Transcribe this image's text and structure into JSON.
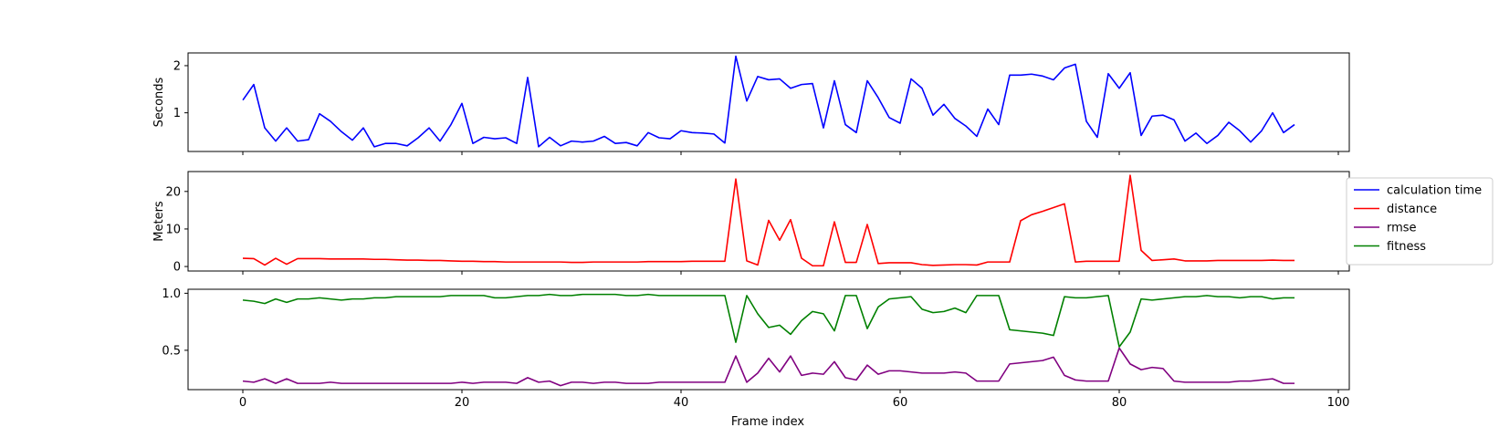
{
  "chart_data": {
    "type": "line",
    "xlabel": "Frame index",
    "xlim": [
      -5,
      101
    ],
    "xticks": [
      0,
      20,
      40,
      60,
      80,
      100
    ],
    "legend": {
      "placement": "right",
      "entries": [
        {
          "name": "calculation time",
          "color": "#0000ff"
        },
        {
          "name": "distance",
          "color": "#ff0000"
        },
        {
          "name": "rmse",
          "color": "#800080"
        },
        {
          "name": "fitness",
          "color": "#008000"
        }
      ]
    },
    "panels": [
      {
        "ylabel": "Seconds",
        "ylim": [
          0.18,
          2.27
        ],
        "yticks": [
          1,
          2
        ],
        "series": [
          {
            "name": "calculation time",
            "color": "#0000ff",
            "values": [
              1.27,
              1.6,
              0.68,
              0.4,
              0.68,
              0.4,
              0.43,
              0.98,
              0.82,
              0.6,
              0.42,
              0.68,
              0.28,
              0.35,
              0.35,
              0.3,
              0.47,
              0.68,
              0.4,
              0.75,
              1.2,
              0.35,
              0.48,
              0.45,
              0.47,
              0.35,
              1.75,
              0.28,
              0.48,
              0.3,
              0.4,
              0.38,
              0.4,
              0.5,
              0.35,
              0.37,
              0.3,
              0.58,
              0.47,
              0.45,
              0.62,
              0.58,
              0.57,
              0.55,
              0.36,
              2.2,
              1.25,
              1.77,
              1.7,
              1.72,
              1.52,
              1.6,
              1.62,
              0.68,
              1.68,
              0.75,
              0.58,
              1.68,
              1.32,
              0.9,
              0.78,
              1.72,
              1.52,
              0.95,
              1.18,
              0.88,
              0.72,
              0.5,
              1.08,
              0.75,
              1.8,
              1.8,
              1.82,
              1.78,
              1.7,
              1.95,
              2.03,
              0.82,
              0.48,
              1.83,
              1.52,
              1.85,
              0.52,
              0.93,
              0.95,
              0.85,
              0.4,
              0.57,
              0.35,
              0.52,
              0.8,
              0.62,
              0.38,
              0.62,
              1.0,
              0.58,
              0.75
            ]
          }
        ]
      },
      {
        "ylabel": "Meters",
        "ylim": [
          -1.2,
          25.3
        ],
        "yticks": [
          0,
          10,
          20
        ],
        "series": [
          {
            "name": "distance",
            "color": "#ff0000",
            "values": [
              2.2,
              2.1,
              0.4,
              2.2,
              0.6,
              2.1,
              2.1,
              2.1,
              2.0,
              2.0,
              2.0,
              2.0,
              1.9,
              1.9,
              1.8,
              1.7,
              1.7,
              1.6,
              1.6,
              1.5,
              1.4,
              1.4,
              1.3,
              1.3,
              1.2,
              1.2,
              1.2,
              1.2,
              1.2,
              1.2,
              1.1,
              1.1,
              1.2,
              1.2,
              1.2,
              1.2,
              1.2,
              1.3,
              1.3,
              1.3,
              1.3,
              1.4,
              1.4,
              1.4,
              1.4,
              23.3,
              1.5,
              0.4,
              12.3,
              7.0,
              12.5,
              2.2,
              0.2,
              0.2,
              11.9,
              1.1,
              1.1,
              11.2,
              0.8,
              1.0,
              1.0,
              1.0,
              0.5,
              0.3,
              0.4,
              0.5,
              0.5,
              0.4,
              1.2,
              1.2,
              1.2,
              12.2,
              13.8,
              14.7,
              15.7,
              16.7,
              1.2,
              1.4,
              1.4,
              1.4,
              1.4,
              24.3,
              4.3,
              1.6,
              1.8,
              2.0,
              1.5,
              1.5,
              1.5,
              1.6,
              1.6,
              1.6,
              1.6,
              1.6,
              1.7,
              1.6,
              1.6
            ]
          }
        ]
      },
      {
        "ylabel": "",
        "ylim": [
          0.155,
          1.035
        ],
        "yticks": [
          0.5,
          1.0
        ],
        "yticklabels": [
          "0.5",
          "1.0"
        ],
        "series": [
          {
            "name": "fitness",
            "color": "#008000",
            "values": [
              0.94,
              0.93,
              0.91,
              0.95,
              0.92,
              0.95,
              0.95,
              0.96,
              0.95,
              0.94,
              0.95,
              0.95,
              0.96,
              0.96,
              0.97,
              0.97,
              0.97,
              0.97,
              0.97,
              0.98,
              0.98,
              0.98,
              0.98,
              0.96,
              0.96,
              0.97,
              0.98,
              0.98,
              0.99,
              0.98,
              0.98,
              0.99,
              0.99,
              0.99,
              0.99,
              0.98,
              0.98,
              0.99,
              0.98,
              0.98,
              0.98,
              0.98,
              0.98,
              0.98,
              0.98,
              0.57,
              0.98,
              0.82,
              0.7,
              0.72,
              0.64,
              0.76,
              0.84,
              0.82,
              0.67,
              0.98,
              0.98,
              0.69,
              0.88,
              0.95,
              0.96,
              0.97,
              0.86,
              0.83,
              0.84,
              0.87,
              0.83,
              0.98,
              0.98,
              0.98,
              0.68,
              0.67,
              0.66,
              0.65,
              0.63,
              0.97,
              0.96,
              0.96,
              0.97,
              0.98,
              0.53,
              0.66,
              0.95,
              0.94,
              0.95,
              0.96,
              0.97,
              0.97,
              0.98,
              0.97,
              0.97,
              0.96,
              0.97,
              0.97,
              0.95,
              0.96,
              0.96
            ]
          },
          {
            "name": "rmse",
            "color": "#800080",
            "values": [
              0.23,
              0.22,
              0.25,
              0.21,
              0.25,
              0.21,
              0.21,
              0.21,
              0.22,
              0.21,
              0.21,
              0.21,
              0.21,
              0.21,
              0.21,
              0.21,
              0.21,
              0.21,
              0.21,
              0.21,
              0.22,
              0.21,
              0.22,
              0.22,
              0.22,
              0.21,
              0.26,
              0.22,
              0.23,
              0.19,
              0.22,
              0.22,
              0.21,
              0.22,
              0.22,
              0.21,
              0.21,
              0.21,
              0.22,
              0.22,
              0.22,
              0.22,
              0.22,
              0.22,
              0.22,
              0.45,
              0.22,
              0.3,
              0.43,
              0.31,
              0.45,
              0.28,
              0.3,
              0.29,
              0.4,
              0.26,
              0.24,
              0.37,
              0.29,
              0.32,
              0.32,
              0.31,
              0.3,
              0.3,
              0.3,
              0.31,
              0.3,
              0.23,
              0.23,
              0.23,
              0.38,
              0.39,
              0.4,
              0.41,
              0.44,
              0.28,
              0.24,
              0.23,
              0.23,
              0.23,
              0.52,
              0.38,
              0.33,
              0.35,
              0.34,
              0.23,
              0.22,
              0.22,
              0.22,
              0.22,
              0.22,
              0.23,
              0.23,
              0.24,
              0.25,
              0.21,
              0.21
            ]
          }
        ]
      }
    ]
  }
}
